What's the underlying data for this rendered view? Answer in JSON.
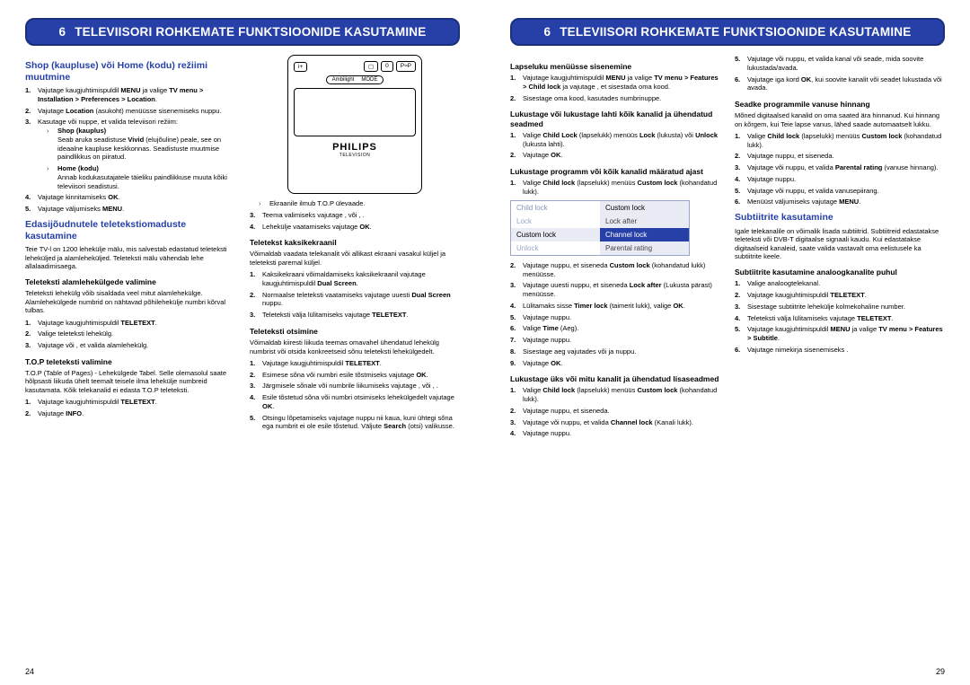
{
  "banner": {
    "num": "6",
    "title": "TELEVIISORI ROHKEMATE FUNKTSIOONIDE KASUTAMINE"
  },
  "pageLeft": {
    "pagenum": "24",
    "col1": {
      "h1": "Shop (kaupluse) või Home (kodu) režiimi muutmine",
      "l1_1": "Vajutage kaugjuhtimispuldil <b>MENU</b> ja valige <b>TV menu > Installation > Preferences > Location</b>.",
      "l1_2": "Vajutage <b>Location</b> (asukoht) menüüsse sisenemiseks nuppu.",
      "l1_3": "Kasutage või nuppe, et valida televiisori režiim:",
      "l1_3a_t": "Shop (kauplus)",
      "l1_3a": "Seab aruka seadistuse <b>Vivid</b> (elujõuline) peale, see on ideaalne kaupluse keskkonnas. Seadistuste muutmise paindlikkus on piiratud.",
      "l1_3b_t": "Home (kodu)",
      "l1_3b": "Annab kodukasutajatele täieliku paindlikkuse muuta kõiki televiisori seadistusi.",
      "l1_4": "Vajutage kinnitamiseks <b>OK</b>.",
      "l1_5": "Vajutage väljumiseks <b>MENU</b>.",
      "h2": "Edasijõudnutele teletekstiomaduste kasutamine",
      "p2": "Teie TV-l on 1200 lehekülje mälu, mis salvestab edastatud teleteksti leheküljed ja alamleheküljed. Teleteksti mälu vähendab lehe allalaadimisaega.",
      "h3": "Teleteksti alamlehekülgede valimine",
      "p3": "Teleteksti lehekülg võib sisaldada veel mitut alamlehekülge. Alamlehekülgede numbrid on nähtavad põhilehekülje numbri kõrval tulbas.",
      "l3_1": "Vajutage kaugjuhtimispuldil <b>TELETEXT</b>.",
      "l3_2": "Valige teleteksti lehekülg.",
      "l3_3": "Vajutage või , et valida alamlehekülg.",
      "h4": "T.O.P teleteksti valimine",
      "p4": "T.O.P (Table of Pages) - Lehekülgede Tabel. Selle olemasolul saate hõlpsasti liikuda ühelt teemalt teisele ilma lehekülje numbreid kasutamata. Kõik telekanalid ei edasta T.O.P teleteksti.",
      "l4_1": "Vajutage kaugjuhtimispuldil <b>TELETEXT</b>.",
      "l4_2": "Vajutage <b>INFO</b>."
    },
    "col2": {
      "remoteBrand": "PHILIPS",
      "remoteSub": "TELEVISION",
      "rnote": "Ekraanile ilmub T.O.P ülevaade.",
      "l_3": "Teema valimiseks vajutage , või , .",
      "l_4": "Lehekülje vaatamiseks vajutage <b>OK</b>.",
      "h5": "Teletekst kaksikekraanil",
      "p5": "Võimaldab vaadata telekanalit või allikast ekraani vasakul küljel ja teleteksti paremal küljel.",
      "l5_1": "Kaksikekraani võimaldamiseks kaksikekraanil vajutage kaugjuhtimispuldil <b>Dual Screen</b>.",
      "l5_2": "Normaalse teleteksti vaatamiseks vajutage uuesti <b>Dual Screen</b> nuppu.",
      "l5_3": "Teleteksti välja lülitamiseks vajutage <b>TELETEXT</b>.",
      "h6": "Teleteksti otsimine",
      "p6": "Võimaldab kiiresti liikuda teemas omavahel ühendatud lehekülg numbrist või otsida konkreetseid sõnu teleteksti lehekülgedelt.",
      "l6_1": "Vajutage kaugjuhtimispuldil <b>TELETEXT</b>.",
      "l6_2": "Esimese sõna või numbri esile tõstmiseks vajutage <b>OK</b>.",
      "l6_3": "Järgmisele sõnale või numbrile liikumiseks vajutage , või , .",
      "l6_4": "Esile tõstetud sõna või numbri otsimiseks lehekülgedelt vajutage <b>OK</b>.",
      "l6_5": "Otsingu lõpetamiseks vajutage nuppu nii kaua, kuni ühtegi sõna ega numbrit ei ole esile tõstetud. Väljute <b>Search</b> (otsi) valikusse."
    }
  },
  "pageRight": {
    "pagenum": "29",
    "col1": {
      "h1": "Lapseluku menüüsse sisenemine",
      "l1_1": "Vajutage kaugjuhtimispuldil <b>MENU</b> ja valige <b>TV menu > Features > Child lock</b> ja vajutage , et sisestada oma kood.",
      "l1_2": "Sisestage oma kood, kasutades numbrinuppe.",
      "h2": "Lukustage või lukustage lahti kõik kanalid ja ühendatud seadmed",
      "l2_1": "Valige <b>Child Lock</b> (lapselukk) menüüs <b>Lock</b> (lukusta) või <b>Unlock</b> (lukusta lahti).",
      "l2_2": "Vajutage <b>OK</b>.",
      "h3": "Lukustage programm või kõik kanalid määratud ajast",
      "l3_1": "Valige <b>Child lock</b> (lapselukk) menüüs <b>Custom lock</b> (kohandatud lukk).",
      "menu": {
        "r1": [
          "Child lock",
          "Custom lock"
        ],
        "r2": [
          "Lock",
          "Lock after"
        ],
        "r3": [
          "Custom lock",
          "Channel lock"
        ],
        "r4": [
          "Unlock",
          "Parental rating"
        ]
      },
      "l3_2": "Vajutage nuppu, et siseneda <b>Custom lock</b> (kohandatud lukk) menüüsse.",
      "l3_3": "Vajutage uuesti nuppu, et siseneda <b>Lock after</b> (Lukusta pärast) menüüsse.",
      "l3_4": "Lülitamaks sisse <b>Timer lock</b> (taimerit lukk), valige <b>OK</b>.",
      "l3_5": "Vajutage nuppu.",
      "l3_6": "Valige <b>Time</b> (Aeg).",
      "l3_7": "Vajutage nuppu.",
      "l3_8": "Sisestage aeg vajutades või ja nuppu.",
      "l3_9": "Vajutage <b>OK</b>.",
      "h4": "Lukustage üks või mitu kanalit ja ühendatud lisaseadmed",
      "l4_1": "Valige <b>Child lock</b> (lapselukk) menüüs <b>Custom lock</b> (kohandatud lukk).",
      "l4_2": "Vajutage nuppu, et siseneda.",
      "l4_3": "Vajutage või nuppu, et valida <b>Channel lock</b> (Kanali lukk).",
      "l4_4": "Vajutage nuppu."
    },
    "col2": {
      "l0_5": "Vajutage või nuppu, et valida kanal või seade, mida soovite lukustada/avada.",
      "l0_6": "Vajutage iga kord <b>OK</b>, kui soovite kanalit või seadet lukustada või avada.",
      "h5": "Seadke programmile vanuse hinnang",
      "p5": "Mõned digitaalsed kanalid on oma saated ära hinnanud. Kui hinnang on kõrgem, kui Teie lapse vanus, lähed saade automaatselt lukku.",
      "l5_1": "Valige <b>Child lock</b> (lapselukk) menüüs <b>Custom lock</b> (kohandatud lukk).",
      "l5_2": "Vajutage nuppu, et siseneda.",
      "l5_3": "Vajutage või nuppu, et valida <b>Parental rating</b> (vanuse hinnang).",
      "l5_4": "Vajutage nuppu.",
      "l5_5": "Vajutage või nuppu, et valida vanusepiirang.",
      "l5_6": "Menüüst väljumiseks vajutage <b>MENU</b>.",
      "h6": "Subtiitrite kasutamine",
      "p6": "Igale telekanalile on võimalik lisada subtiitrid. Subtiitreid edastatakse teleteksti või DVB-T digitaalse signaali kaudu. Kui edastatakse digitaalseid kanaleid, saate valida vastavalt oma eelistusele ka subtiitrite keele.",
      "h7": "Subtiitrite kasutamine analoogkanalite puhul",
      "l7_1": "Valige analoogtelekanal.",
      "l7_2": "Vajutage kaugjuhtimispuldil <b>TELETEXT</b>.",
      "l7_3": "Sisestage subtiitrite lehekülje kolmekohaline number.",
      "l7_4": "Teleteksti välja lülitamiseks vajutage <b>TELETEXT</b>.",
      "l7_5": "Vajutage kaugjuhtimispuldil <b>MENU</b> ja valige <b>TV menu > Features > Subtitle</b>.",
      "l7_6": "Vajutage nimekirja sisenemiseks ."
    }
  }
}
